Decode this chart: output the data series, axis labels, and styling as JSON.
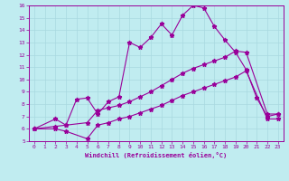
{
  "xlabel": "Windchill (Refroidissement éolien,°C)",
  "background_color": "#c0ecf0",
  "line_color": "#990099",
  "xlim": [
    -0.5,
    23.5
  ],
  "ylim": [
    5,
    16
  ],
  "xticks": [
    0,
    1,
    2,
    3,
    4,
    5,
    6,
    7,
    8,
    9,
    10,
    11,
    12,
    13,
    14,
    15,
    16,
    17,
    18,
    19,
    20,
    21,
    22,
    23
  ],
  "yticks": [
    5,
    6,
    7,
    8,
    9,
    10,
    11,
    12,
    13,
    14,
    15,
    16
  ],
  "line1_x": [
    0,
    2,
    3,
    4,
    5,
    6,
    7,
    8,
    9,
    10,
    11,
    12,
    13,
    14,
    15,
    16,
    17,
    18,
    19,
    20,
    21,
    22,
    23
  ],
  "line1_y": [
    6.0,
    6.8,
    6.3,
    8.4,
    8.5,
    7.2,
    8.2,
    8.6,
    13.0,
    12.6,
    13.4,
    14.5,
    13.6,
    15.2,
    16.0,
    15.8,
    14.3,
    13.2,
    12.2,
    10.8,
    8.5,
    7.0,
    7.2
  ],
  "line2_x": [
    0,
    2,
    3,
    5,
    6,
    7,
    8,
    9,
    10,
    11,
    12,
    13,
    14,
    15,
    16,
    17,
    18,
    19,
    20,
    22,
    23
  ],
  "line2_y": [
    6.0,
    6.2,
    6.3,
    6.5,
    7.5,
    7.7,
    7.9,
    8.2,
    8.6,
    9.0,
    9.5,
    10.0,
    10.5,
    10.9,
    11.2,
    11.5,
    11.8,
    12.3,
    12.2,
    7.2,
    7.2
  ],
  "line3_x": [
    0,
    2,
    3,
    5,
    6,
    7,
    8,
    9,
    10,
    11,
    12,
    13,
    14,
    15,
    16,
    17,
    18,
    19,
    20,
    22,
    23
  ],
  "line3_y": [
    6.0,
    6.0,
    5.8,
    5.2,
    6.3,
    6.5,
    6.8,
    7.0,
    7.3,
    7.6,
    7.9,
    8.3,
    8.7,
    9.0,
    9.3,
    9.6,
    9.9,
    10.2,
    10.7,
    6.8,
    6.8
  ]
}
